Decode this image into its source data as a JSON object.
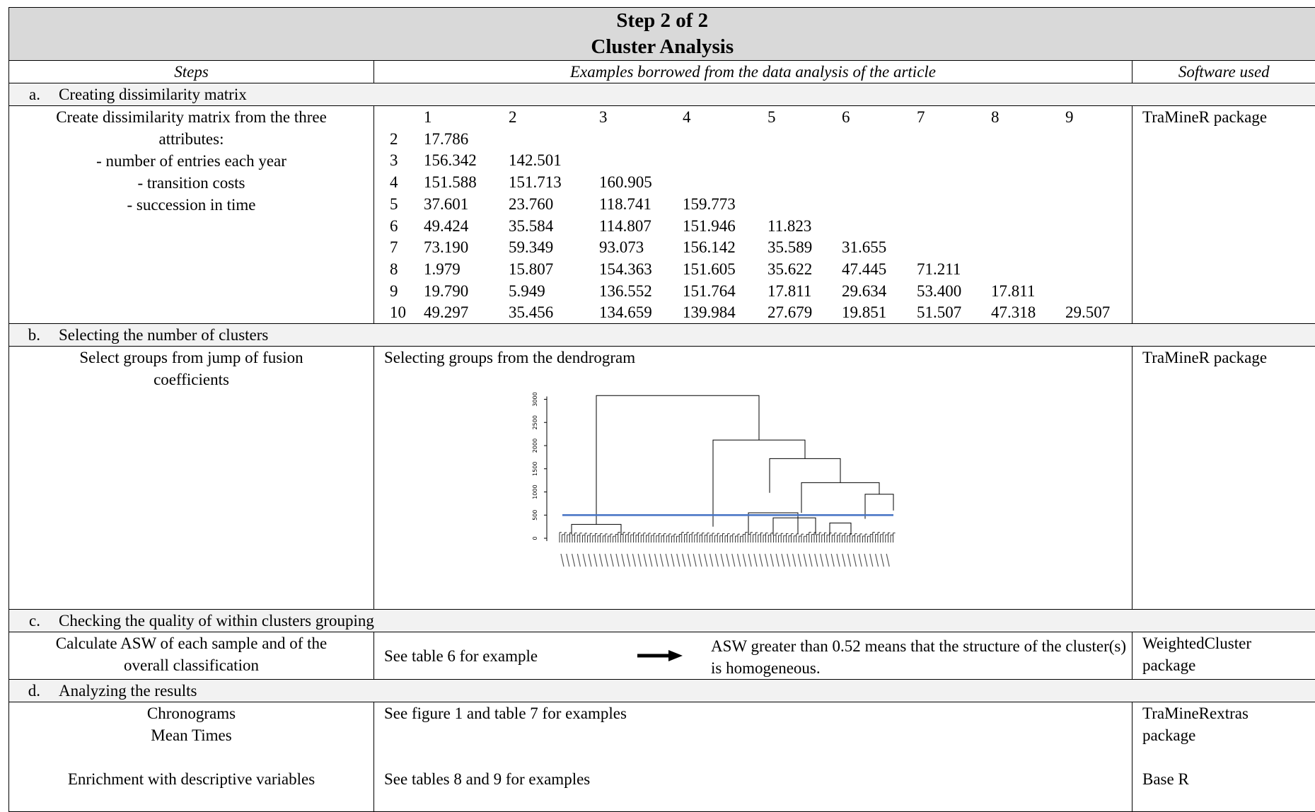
{
  "title": {
    "line1": "Step 2 of 2",
    "line2": "Cluster Analysis"
  },
  "headers": {
    "steps": "Steps",
    "examples": "Examples borrowed from the data analysis of the article",
    "software": "Software used"
  },
  "section_a": {
    "letter": "a.",
    "title": "Creating dissimilarity matrix",
    "step_lines": [
      "Create dissimilarity matrix from the three",
      "attributes:",
      "- number of entries each year",
      "- transition costs",
      "- succession in time"
    ],
    "software": "TraMineR package",
    "matrix": {
      "col_headers": [
        "1",
        "2",
        "3",
        "4",
        "5",
        "6",
        "7",
        "8",
        "9"
      ],
      "rows": [
        {
          "label": "2",
          "values": [
            "17.786"
          ]
        },
        {
          "label": "3",
          "values": [
            "156.342",
            "142.501"
          ]
        },
        {
          "label": "4",
          "values": [
            "151.588",
            "151.713",
            "160.905"
          ]
        },
        {
          "label": "5",
          "values": [
            "37.601",
            "23.760",
            "118.741",
            "159.773"
          ]
        },
        {
          "label": "6",
          "values": [
            "49.424",
            "35.584",
            "114.807",
            "151.946",
            "11.823"
          ]
        },
        {
          "label": "7",
          "values": [
            "73.190",
            "59.349",
            "93.073",
            "156.142",
            "35.589",
            "31.655"
          ]
        },
        {
          "label": "8",
          "values": [
            "1.979",
            "15.807",
            "154.363",
            "151.605",
            "35.622",
            "47.445",
            "71.211"
          ]
        },
        {
          "label": "9",
          "values": [
            "19.790",
            "5.949",
            "136.552",
            "151.764",
            "17.811",
            "29.634",
            "53.400",
            "17.811"
          ]
        },
        {
          "label": "10",
          "values": [
            "49.297",
            "35.456",
            "134.659",
            "139.984",
            "27.679",
            "19.851",
            "51.507",
            "47.318",
            "29.507"
          ]
        }
      ]
    }
  },
  "section_b": {
    "letter": "b.",
    "title": "Selecting the number of clusters",
    "step_lines": [
      "Select groups from jump of fusion",
      "coefficients"
    ],
    "example": "Selecting groups from the dendrogram",
    "software": "TraMineR package",
    "dendrogram": {
      "y_ticks": [
        "0",
        "500",
        "1000",
        "1500",
        "2000",
        "2500",
        "3000"
      ],
      "cut_line_color": "#4472c4"
    }
  },
  "section_c": {
    "letter": "c.",
    "title": "Checking the quality of within clusters grouping",
    "step_lines": [
      "Calculate ASW of each sample and of the",
      "overall classification"
    ],
    "example": "See table 6 for example",
    "result": "ASW greater than 0.52 means that the structure of the cluster(s) is homogeneous.",
    "software_lines": [
      "WeightedCluster",
      "package"
    ]
  },
  "section_d": {
    "letter": "d.",
    "title": "Analyzing the results",
    "step1_lines": [
      "Chronograms",
      "Mean Times"
    ],
    "step2": "Enrichment with descriptive variables",
    "example1": "See figure 1 and table 7 for examples",
    "example2": "See tables 8 and 9 for examples",
    "software1_lines": [
      "TraMineRextras",
      "package"
    ],
    "software2": "Base R"
  }
}
